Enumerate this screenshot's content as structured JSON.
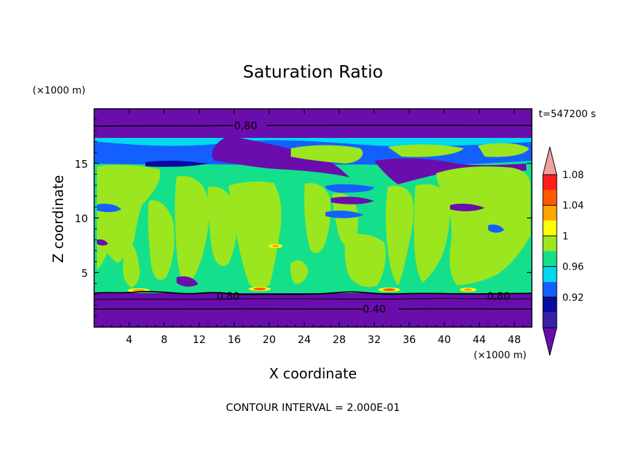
{
  "chart_data": {
    "type": "heatmap",
    "title": "Saturation Ratio",
    "xlabel": "X coordinate",
    "ylabel": "Z coordinate",
    "x_units": "(×1000 m)",
    "y_units": "(×1000 m)",
    "time_label": "t=547200 s",
    "footer": "CONTOUR INTERVAL = 2.000E-01",
    "xlim": [
      0,
      50
    ],
    "ylim": [
      0,
      20
    ],
    "xticks": [
      4,
      8,
      12,
      16,
      20,
      24,
      28,
      32,
      36,
      40,
      44,
      48
    ],
    "yticks": [
      5,
      10,
      15
    ],
    "colorbar": {
      "levels": [
        0.92,
        0.96,
        1,
        1.04,
        1.08
      ],
      "bins": [
        {
          "range": "<0.90",
          "color": "#6a0dad"
        },
        {
          "range": "0.90-0.92",
          "color": "#3a1fa8"
        },
        {
          "range": "0.92-0.94",
          "color": "#0a0aa0"
        },
        {
          "range": "0.94-0.96",
          "color": "#1460ff"
        },
        {
          "range": "0.96-0.98",
          "color": "#00d8f0"
        },
        {
          "range": "0.98-1.00",
          "color": "#14e08c"
        },
        {
          "range": "1.00-1.02",
          "color": "#9be61e"
        },
        {
          "range": "1.02-1.04",
          "color": "#ffff00"
        },
        {
          "range": "1.04-1.06",
          "color": "#ffa500"
        },
        {
          "range": "1.06-1.08",
          "color": "#ff5a00"
        },
        {
          "range": "1.08-1.10",
          "color": "#ff1e1e"
        },
        {
          "range": ">1.10",
          "color": "#f0a0a0"
        }
      ]
    },
    "contour_labels": [
      {
        "text": "0.80",
        "x": 17.3,
        "z": 18.5
      },
      {
        "text": "0.80",
        "x": 15.3,
        "z": 2.9
      },
      {
        "text": "0.80",
        "x": 46.2,
        "z": 2.9
      },
      {
        "text": "0.40",
        "x": 32.0,
        "z": 1.7
      }
    ],
    "bands": [
      {
        "z_range": [
          0,
          3.2
        ],
        "value": "<0.90"
      },
      {
        "z_range": [
          3.2,
          15.0
        ],
        "value": "0.98-1.02"
      },
      {
        "z_range": [
          15.0,
          17.8
        ],
        "value": "0.90-0.98"
      },
      {
        "z_range": [
          17.8,
          20
        ],
        "value": "<0.90"
      }
    ]
  }
}
